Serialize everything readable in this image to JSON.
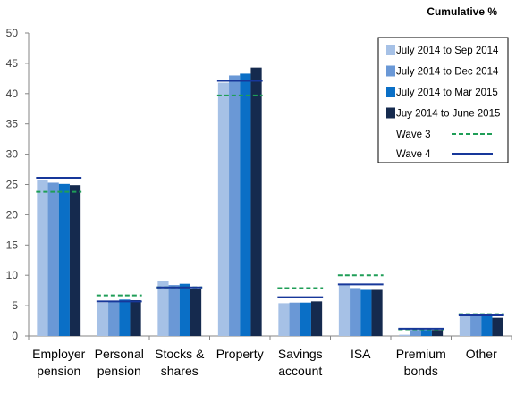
{
  "chart_data": {
    "type": "bar",
    "title": "Cumulative %",
    "categories": [
      [
        "Employer",
        "pension"
      ],
      [
        "Personal",
        "pension"
      ],
      [
        "Stocks &",
        "shares"
      ],
      [
        "Property"
      ],
      [
        "Savings",
        "account"
      ],
      [
        "ISA"
      ],
      [
        "Premium",
        "bonds"
      ],
      [
        "Other"
      ]
    ],
    "ylim": [
      0,
      50
    ],
    "yticks": [
      0,
      5,
      10,
      15,
      20,
      25,
      30,
      35,
      40,
      45,
      50
    ],
    "grid": false,
    "legend_position": "top-right",
    "series": [
      {
        "name": "July 2014 to Sep 2014",
        "color": "#a6c1e6",
        "values": [
          25.7,
          5.5,
          9.0,
          41.8,
          5.4,
          8.5,
          0.2,
          3.3
        ]
      },
      {
        "name": "July 2014 to Dec 2014",
        "color": "#6a98d6",
        "values": [
          25.3,
          5.8,
          8.4,
          43.0,
          5.5,
          7.9,
          1.0,
          3.4
        ]
      },
      {
        "name": "July 2014 to Mar 2015",
        "color": "#0a6fc6",
        "values": [
          25.1,
          6.0,
          8.6,
          43.3,
          5.5,
          7.6,
          1.0,
          3.4
        ]
      },
      {
        "name": "Juy 2014 to June 2015",
        "color": "#152a4e",
        "values": [
          24.9,
          5.9,
          7.7,
          44.3,
          5.7,
          7.6,
          1.0,
          3.0
        ]
      }
    ],
    "reference_lines": [
      {
        "name": "Wave 3",
        "color": "#1f9e57",
        "style": "dashed",
        "values": [
          23.8,
          6.7,
          8.0,
          39.7,
          7.9,
          10.0,
          1.1,
          3.6
        ]
      },
      {
        "name": "Wave 4",
        "color": "#17379a",
        "style": "solid",
        "values": [
          26.1,
          5.7,
          8.0,
          42.1,
          6.4,
          8.5,
          1.2,
          3.4
        ]
      }
    ]
  }
}
